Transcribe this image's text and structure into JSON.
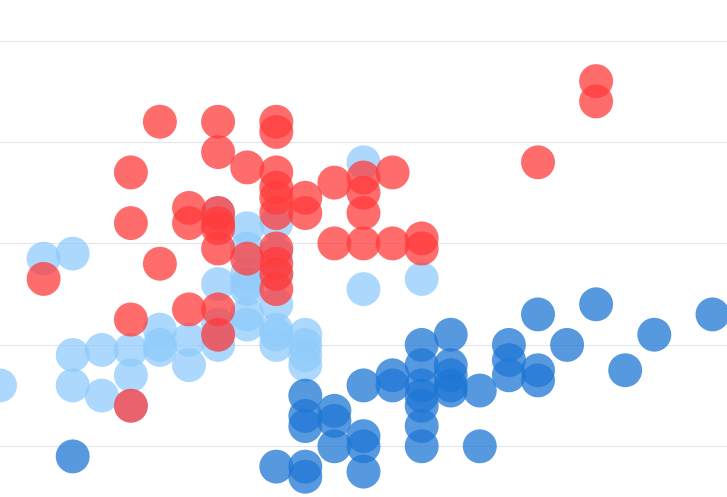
{
  "colors": {
    "grid": "#e2e4ec",
    "light_blue": "#8fcbfb",
    "dark_blue": "#1f77d4",
    "red": "#ff3b3b",
    "background": "#ffffff"
  },
  "chart_data": {
    "type": "scatter",
    "title": "",
    "xlabel": "",
    "ylabel": "",
    "grid": "horizontal",
    "legend": "none",
    "xlim": [
      -25,
      100
    ],
    "ylim": [
      -5,
      44
    ],
    "y_gridlines": [
      0,
      10,
      20,
      30,
      40
    ],
    "series": [
      {
        "color_key": "light_blue",
        "points": [
          [
            -25,
            6
          ],
          [
            -17.5,
            18.5
          ],
          [
            -12.5,
            19
          ],
          [
            -12.5,
            9
          ],
          [
            -12.5,
            6
          ],
          [
            -7.5,
            9.5
          ],
          [
            -7.5,
            5
          ],
          [
            -2.5,
            9.5
          ],
          [
            -2.5,
            7
          ],
          [
            -2.5,
            4
          ],
          [
            2.5,
            11.5
          ],
          [
            2.5,
            10
          ],
          [
            2.5,
            9.5
          ],
          [
            7.5,
            10.5
          ],
          [
            7.5,
            8
          ],
          [
            12.5,
            23
          ],
          [
            12.5,
            16
          ],
          [
            12.5,
            12
          ],
          [
            12.5,
            11
          ],
          [
            12.5,
            10
          ],
          [
            17.5,
            21.5
          ],
          [
            17.5,
            19.5
          ],
          [
            17.5,
            17
          ],
          [
            17.5,
            16
          ],
          [
            17.5,
            15.5
          ],
          [
            17.5,
            13
          ],
          [
            17.5,
            12
          ],
          [
            22.5,
            22
          ],
          [
            22.5,
            19
          ],
          [
            22.5,
            17
          ],
          [
            22.5,
            14
          ],
          [
            22.5,
            11.5
          ],
          [
            22.5,
            11
          ],
          [
            22.5,
            10
          ],
          [
            27.5,
            11
          ],
          [
            27.5,
            10
          ],
          [
            27.5,
            9
          ],
          [
            27.5,
            8
          ],
          [
            37.5,
            28
          ],
          [
            37.5,
            15.5
          ],
          [
            47.5,
            16.5
          ]
        ]
      },
      {
        "color_key": "dark_blue",
        "points": [
          [
            -12.5,
            -1
          ],
          [
            22.5,
            -2
          ],
          [
            27.5,
            5
          ],
          [
            27.5,
            3
          ],
          [
            27.5,
            2
          ],
          [
            27.5,
            -2
          ],
          [
            27.5,
            -3
          ],
          [
            32.5,
            3.5
          ],
          [
            32.5,
            2.5
          ],
          [
            32.5,
            0
          ],
          [
            37.5,
            6
          ],
          [
            37.5,
            1
          ],
          [
            37.5,
            0
          ],
          [
            37.5,
            -2.5
          ],
          [
            42.5,
            7
          ],
          [
            42.5,
            6
          ],
          [
            47.5,
            10
          ],
          [
            47.5,
            8
          ],
          [
            47.5,
            6
          ],
          [
            47.5,
            5
          ],
          [
            47.5,
            4
          ],
          [
            47.5,
            2
          ],
          [
            47.5,
            0
          ],
          [
            52.5,
            11
          ],
          [
            52.5,
            8
          ],
          [
            52.5,
            7
          ],
          [
            52.5,
            6
          ],
          [
            52.5,
            5.5
          ],
          [
            57.5,
            5.5
          ],
          [
            57.5,
            0
          ],
          [
            62.5,
            10
          ],
          [
            62.5,
            8.5
          ],
          [
            62.5,
            7
          ],
          [
            67.5,
            13
          ],
          [
            67.5,
            7.5
          ],
          [
            67.5,
            6.5
          ],
          [
            72.5,
            10
          ],
          [
            77.5,
            14
          ],
          [
            82.5,
            7.5
          ],
          [
            87.5,
            11
          ],
          [
            97.5,
            13
          ]
        ]
      },
      {
        "color_key": "red",
        "points": [
          [
            -17.5,
            16.5
          ],
          [
            -2.5,
            27
          ],
          [
            -2.5,
            22
          ],
          [
            -2.5,
            12.5
          ],
          [
            -2.5,
            4
          ],
          [
            2.5,
            32
          ],
          [
            2.5,
            18
          ],
          [
            7.5,
            23.5
          ],
          [
            7.5,
            22
          ],
          [
            7.5,
            13.5
          ],
          [
            12.5,
            32
          ],
          [
            12.5,
            29
          ],
          [
            12.5,
            23
          ],
          [
            12.5,
            22
          ],
          [
            12.5,
            21.5
          ],
          [
            12.5,
            19.5
          ],
          [
            12.5,
            13.5
          ],
          [
            12.5,
            11
          ],
          [
            17.5,
            27.5
          ],
          [
            17.5,
            18.5
          ],
          [
            22.5,
            32
          ],
          [
            22.5,
            31
          ],
          [
            22.5,
            27
          ],
          [
            22.5,
            25.5
          ],
          [
            22.5,
            24.5
          ],
          [
            22.5,
            23
          ],
          [
            22.5,
            19.5
          ],
          [
            22.5,
            18
          ],
          [
            22.5,
            17
          ],
          [
            22.5,
            15.5
          ],
          [
            27.5,
            24.5
          ],
          [
            27.5,
            23
          ],
          [
            32.5,
            26
          ],
          [
            32.5,
            20
          ],
          [
            37.5,
            26.5
          ],
          [
            37.5,
            25
          ],
          [
            37.5,
            23
          ],
          [
            37.5,
            20
          ],
          [
            42.5,
            20
          ],
          [
            42.5,
            27
          ],
          [
            47.5,
            20.5
          ],
          [
            47.5,
            19.5
          ],
          [
            67.5,
            28
          ],
          [
            77.5,
            36
          ],
          [
            77.5,
            34
          ]
        ]
      }
    ]
  }
}
